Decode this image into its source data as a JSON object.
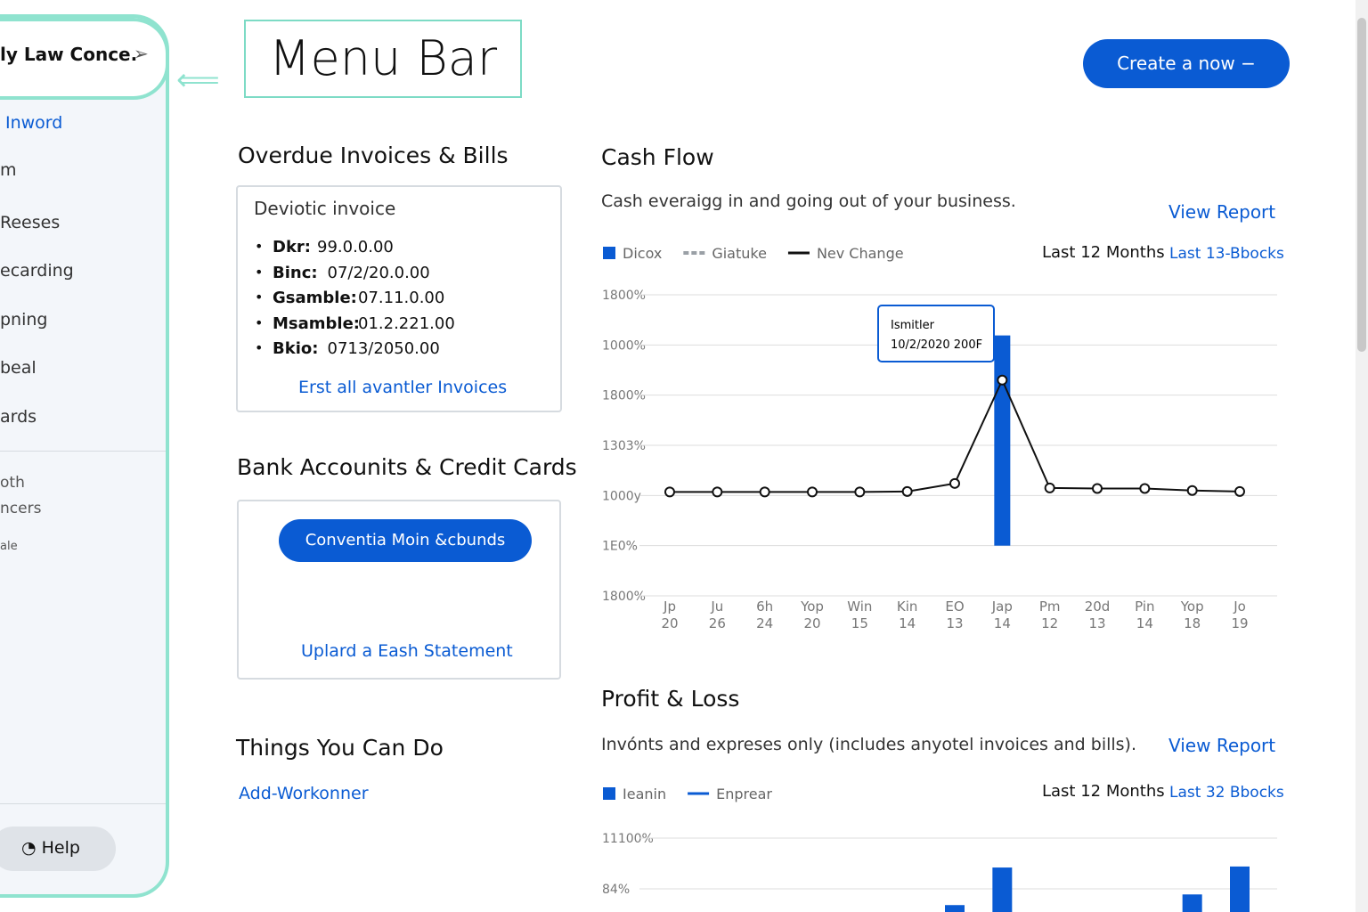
{
  "sidebar": {
    "company": "ly Law Conce.",
    "nav": [
      "Inword",
      "m",
      "Reeses",
      "ecarding",
      "pning",
      "beal",
      "ards"
    ],
    "secondary": [
      "oth",
      "ncers",
      "ale"
    ],
    "help": "Help"
  },
  "callout": "Menu Bar",
  "create_button": "Create a now",
  "overdue": {
    "title": "Overdue Invoices & Bills",
    "card_title": "Deviotic invoice",
    "items": [
      [
        "Dkr:",
        "99.0.0.00"
      ],
      [
        "Binc:",
        "07/2/20.0.00"
      ],
      [
        "Gsamble:",
        "07.11.0.00"
      ],
      [
        "Msamble:",
        "01.2.221.00"
      ],
      [
        "Bkio:",
        "0713/2050.00"
      ]
    ],
    "link": "Erst all avantler Invoices"
  },
  "bank": {
    "title": "Bank Accounits & Credit Cards",
    "button": "Conventia Moin &cbunds",
    "link": "Uplard a Eash Statement"
  },
  "things": {
    "title": "Things You Can Do",
    "link": "Add-Workonner"
  },
  "cash_flow": {
    "type": "bar-line",
    "title": "Cash Flow",
    "subtitle": "Cash everaigg in and going out of your business.",
    "view_report": "View Report",
    "period": "Last 12 Months",
    "period_link": "Last 13-Bbocks",
    "categories": [
      [
        "Jp",
        "20"
      ],
      [
        "Ju",
        "26"
      ],
      [
        "6h",
        "24"
      ],
      [
        "Yop",
        "20"
      ],
      [
        "Win",
        "15"
      ],
      [
        "Kin",
        "14"
      ],
      [
        "EO",
        "13"
      ],
      [
        "Jap",
        "14"
      ],
      [
        "Pm",
        "12"
      ],
      [
        "20d",
        "13"
      ],
      [
        "Pin",
        "14"
      ],
      [
        "Yop",
        "18"
      ],
      [
        "Jo",
        "19"
      ]
    ],
    "series": [
      {
        "name": "Dicox",
        "color": "#0a5bd3",
        "values": [
          null,
          null,
          null,
          null,
          null,
          null,
          null,
          4.19,
          null,
          null,
          null,
          null,
          null
        ]
      },
      {
        "name": "Giatuke",
        "color": "#9aa0a6",
        "values": []
      },
      {
        "name": "Nev Change",
        "color": "#111111",
        "values": [
          1.07,
          1.07,
          1.07,
          1.07,
          1.07,
          1.08,
          1.24,
          3.3,
          1.15,
          1.14,
          1.14,
          1.1,
          1.08
        ]
      }
    ],
    "ylim": [
      -1,
      5
    ],
    "yticks": [
      {
        "value": 5,
        "label": "1800%"
      },
      {
        "value": 4,
        "label": "1000%"
      },
      {
        "value": 3,
        "label": "1800%"
      },
      {
        "value": 2,
        "label": "1303%"
      },
      {
        "value": 1,
        "label": "1000y"
      },
      {
        "value": 0,
        "label": "1E0%"
      },
      {
        "value": -1,
        "label": "1800%"
      }
    ],
    "grid": true,
    "tooltip": [
      "Ismitler",
      "10/2/2020 200F"
    ]
  },
  "profit_loss": {
    "type": "bar",
    "title": "Profit & Loss",
    "subtitle": "Invónts and expreses only (includes anyotel invoices and bills).",
    "view_report": "View Report",
    "period": "Last 12 Months",
    "period_link": "Last 32 Bbocks",
    "series": [
      {
        "name": "Ieanin",
        "color": "#0a5bd3",
        "values": [
          null,
          null,
          null,
          null,
          null,
          null,
          0.68,
          1.42,
          null,
          null,
          null,
          0.89,
          1.44
        ]
      },
      {
        "name": "Enprear",
        "color": "#0a5bd3",
        "values": []
      }
    ],
    "ylim": [
      0,
      2
    ],
    "yticks": [
      {
        "value": 2,
        "label": "11100%"
      },
      {
        "value": 1,
        "label": "84%"
      }
    ],
    "grid": true
  }
}
